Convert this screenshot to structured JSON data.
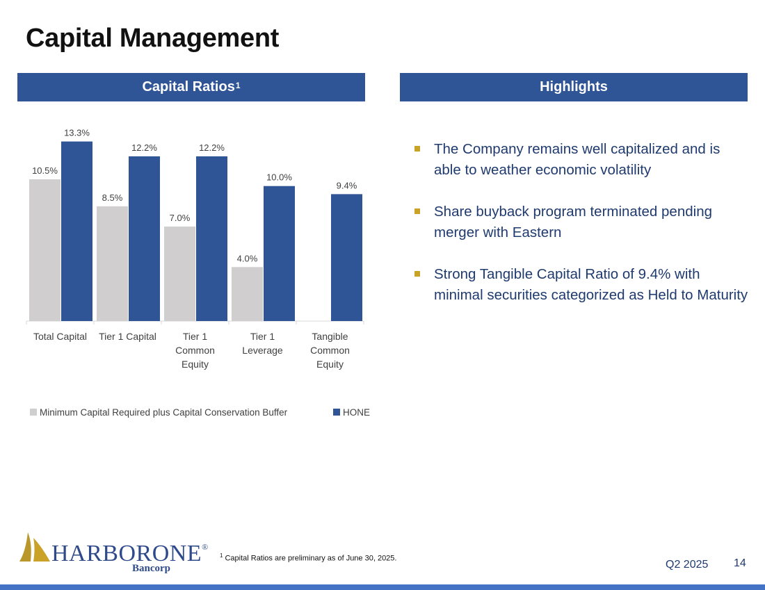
{
  "page": {
    "title": "Capital Management"
  },
  "left_panel": {
    "header": "Capital Ratios",
    "header_sup": "1"
  },
  "right_panel": {
    "header": "Highlights",
    "items": [
      "The Company remains well capitalized and is able to weather economic volatility",
      "Share buyback program terminated pending merger with Eastern",
      "Strong Tangible Capital Ratio of 9.4% with minimal securities categorized as Held to Maturity"
    ]
  },
  "chart_data": {
    "type": "bar",
    "categories": [
      [
        "Total Capital"
      ],
      [
        "Tier 1 Capital"
      ],
      [
        "Tier 1",
        "Common",
        "Equity"
      ],
      [
        "Tier 1",
        "Leverage"
      ],
      [
        "Tangible",
        "Common",
        "Equity"
      ]
    ],
    "series": [
      {
        "name": "Minimum Capital Required plus Capital Conservation Buffer",
        "color": "#d0cece",
        "values": [
          10.5,
          8.5,
          7.0,
          4.0,
          null
        ],
        "labels": [
          "10.5%",
          "8.5%",
          "7.0%",
          "4.0%",
          ""
        ]
      },
      {
        "name": "HONE",
        "color": "#2f5597",
        "values": [
          13.3,
          12.2,
          12.2,
          10.0,
          9.4
        ],
        "labels": [
          "13.3%",
          "12.2%",
          "12.2%",
          "10.0%",
          "9.4%"
        ]
      }
    ],
    "ylim": [
      0,
      14
    ],
    "grid": false,
    "legend_position": "bottom"
  },
  "footer": {
    "logo_text_a": "HARBOR",
    "logo_text_b": "ONE",
    "logo_reg": "®",
    "logo_sub": "Bancorp",
    "footnote_sup": "1",
    "footnote": "Capital Ratios are preliminary as of June 30, 2025.",
    "quarter": "Q2 2025",
    "page_number": "14"
  },
  "colors": {
    "header_bg": "#2f5597",
    "bullet": "#c9a227",
    "text_blue": "#1f3a6e",
    "bottom_bar": "#4472c4"
  }
}
